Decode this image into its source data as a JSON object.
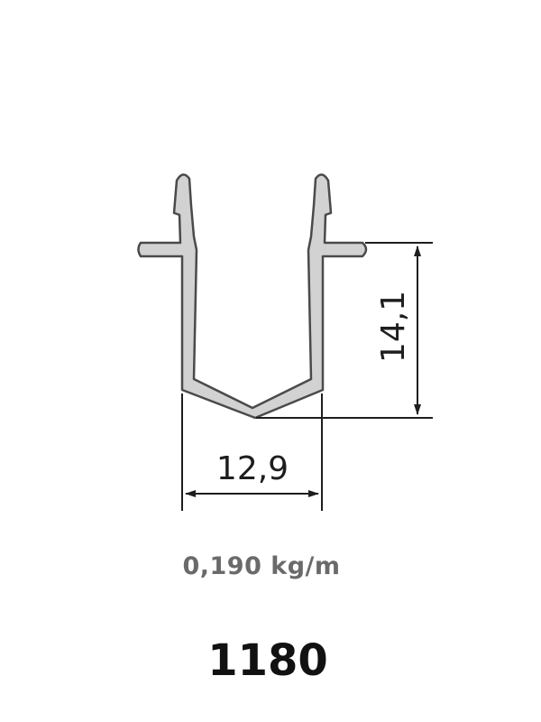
{
  "drawing": {
    "dimensions": {
      "width_label": "12,9",
      "height_label": "14,1"
    },
    "colors": {
      "profile_fill": "#d2d2d2",
      "profile_stroke": "#4a4a4a",
      "dimension_line": "#1e1e1e"
    }
  },
  "specs": {
    "weight": "0,190 kg/m",
    "code": "1180"
  }
}
